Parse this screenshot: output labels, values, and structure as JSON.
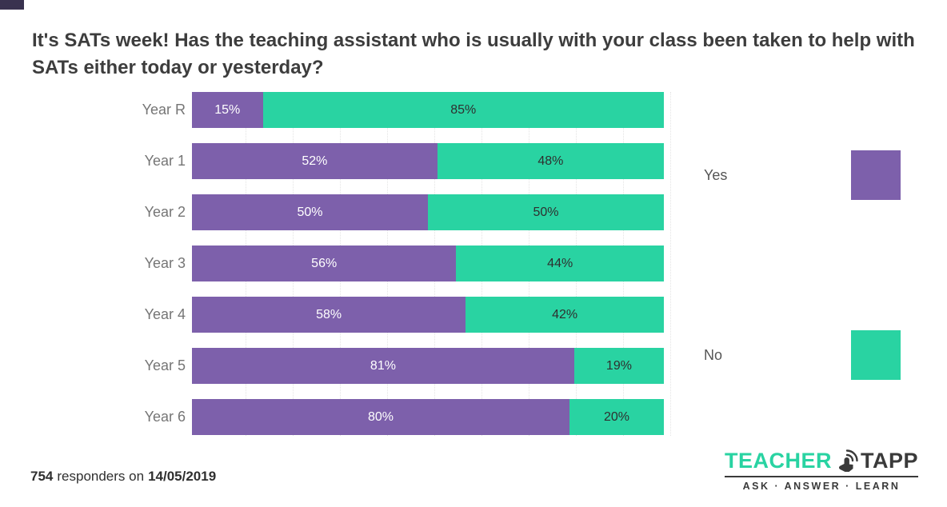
{
  "title": "It's SATs week! Has the teaching assistant who is usually with your class been taken to help with SATs either today or yesterday?",
  "chart_data": {
    "type": "bar",
    "orientation": "horizontal",
    "stacked": true,
    "categories": [
      "Year R",
      "Year 1",
      "Year 2",
      "Year 3",
      "Year 4",
      "Year 5",
      "Year 6"
    ],
    "series": [
      {
        "name": "Yes",
        "color": "#7d60ab",
        "text_color": "#ffffff",
        "values": [
          15,
          52,
          50,
          56,
          58,
          81,
          80
        ]
      },
      {
        "name": "No",
        "color": "#29d3a2",
        "text_color": "#2f2f2f",
        "values": [
          85,
          48,
          50,
          44,
          42,
          19,
          20
        ]
      }
    ],
    "value_suffix": "%",
    "xlim": [
      0,
      100
    ],
    "grid": "faint-vertical-dotted",
    "legend_position": "right"
  },
  "footer": {
    "responders_count": "754",
    "responders_text": "responders on",
    "date": "14/05/2019"
  },
  "logo": {
    "brand_primary": "TEACHER",
    "brand_secondary": "TAPP",
    "tagline": "ASK · ANSWER · LEARN",
    "brand_primary_color": "#29d3a2"
  }
}
